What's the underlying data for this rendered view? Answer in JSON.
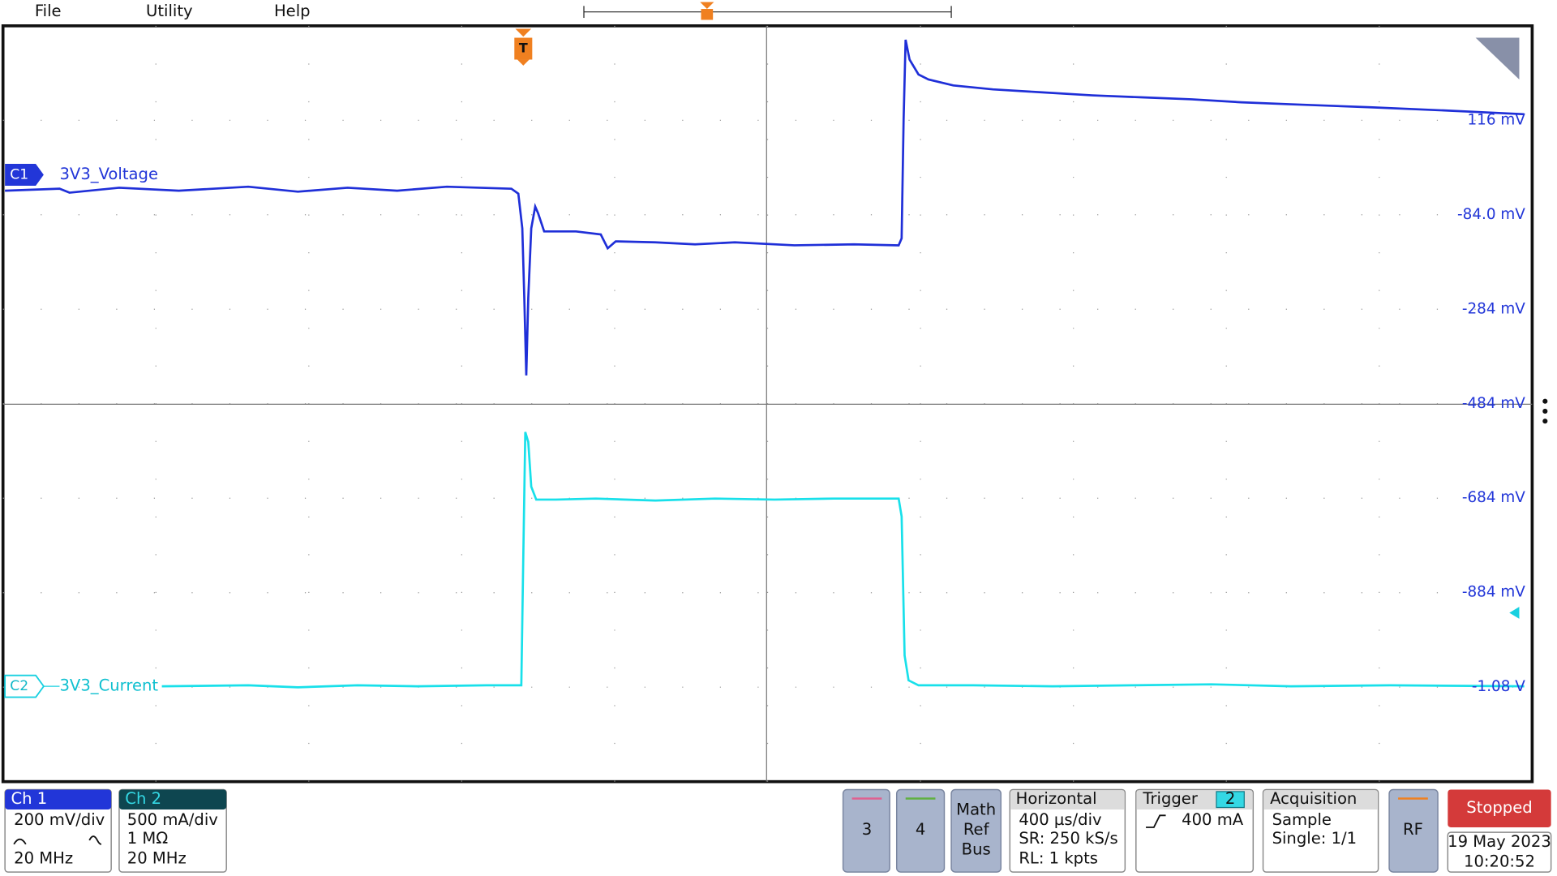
{
  "menu": {
    "items": [
      "File",
      "Utility",
      "Help"
    ]
  },
  "plot": {
    "channels": [
      {
        "tag": "C1",
        "name": "3V3_Voltage"
      },
      {
        "tag": "C2",
        "name": "3V3_Current"
      }
    ],
    "trigger_tag": "T",
    "scale_labels": [
      "116 mV",
      "-84.0 mV",
      "-284 mV",
      "-484 mV",
      "-684 mV",
      "-884 mV",
      "-1.08 V"
    ]
  },
  "status": {
    "ch1": {
      "title": "Ch 1",
      "lines": [
        "200 mV/div",
        "20 MHz"
      ]
    },
    "ch2": {
      "title": "Ch 2",
      "lines": [
        "500 mA/div",
        "1 MΩ",
        "20 MHz"
      ]
    },
    "buttons": [
      "3",
      "4",
      "Math",
      "Ref",
      "Bus"
    ],
    "horizontal": {
      "title": "Horizontal",
      "lines": [
        "400 µs/div",
        "SR: 250 kS/s",
        "RL: 1 kpts"
      ]
    },
    "trigger": {
      "title": "Trigger",
      "source": "2",
      "level": "400 mA"
    },
    "acquisition": {
      "title": "Acquisition",
      "lines": [
        "Sample",
        "Single: 1/1"
      ]
    },
    "rf": "RF",
    "run_state": "Stopped",
    "date": "19 May 2023",
    "time": "10:20:52"
  }
}
